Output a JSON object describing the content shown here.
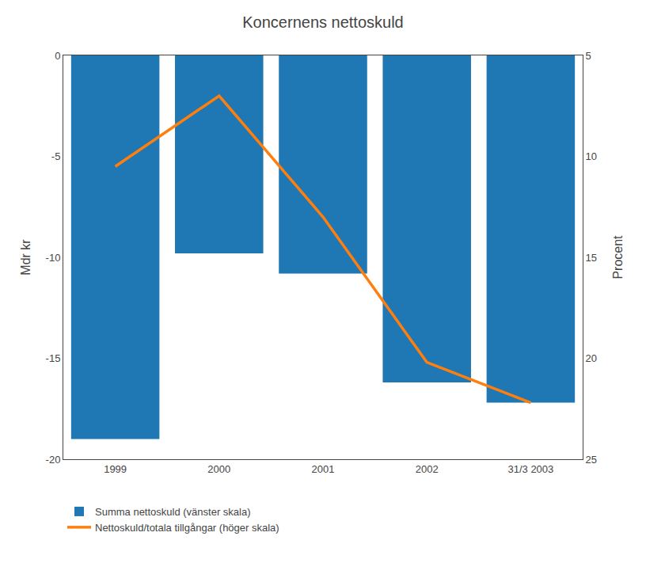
{
  "chart_data": {
    "type": "bar",
    "title": "Koncernens nettoskuld",
    "categories": [
      "1999",
      "2000",
      "2001",
      "2002",
      "31/3 2003"
    ],
    "series": [
      {
        "name": "Summa nettoskuld (vänster skala)",
        "type": "bar",
        "values": [
          -19.0,
          -9.8,
          -10.8,
          -16.2,
          -17.2
        ]
      },
      {
        "name": "Nettoskuld/totala tillgångar (höger skala)",
        "type": "line",
        "axis": "y2",
        "values": [
          10.5,
          7.0,
          13.0,
          20.2,
          22.2
        ]
      }
    ],
    "ylabel": "Mdr kr",
    "y2label": "Procent",
    "ylim": [
      -20,
      0
    ],
    "yticks": [
      0,
      -5,
      -10,
      -15,
      -20
    ],
    "y2lim": [
      25,
      5
    ],
    "y2ticks": [
      5,
      10,
      15,
      20,
      25
    ],
    "grid": false,
    "legend": "lower left"
  }
}
